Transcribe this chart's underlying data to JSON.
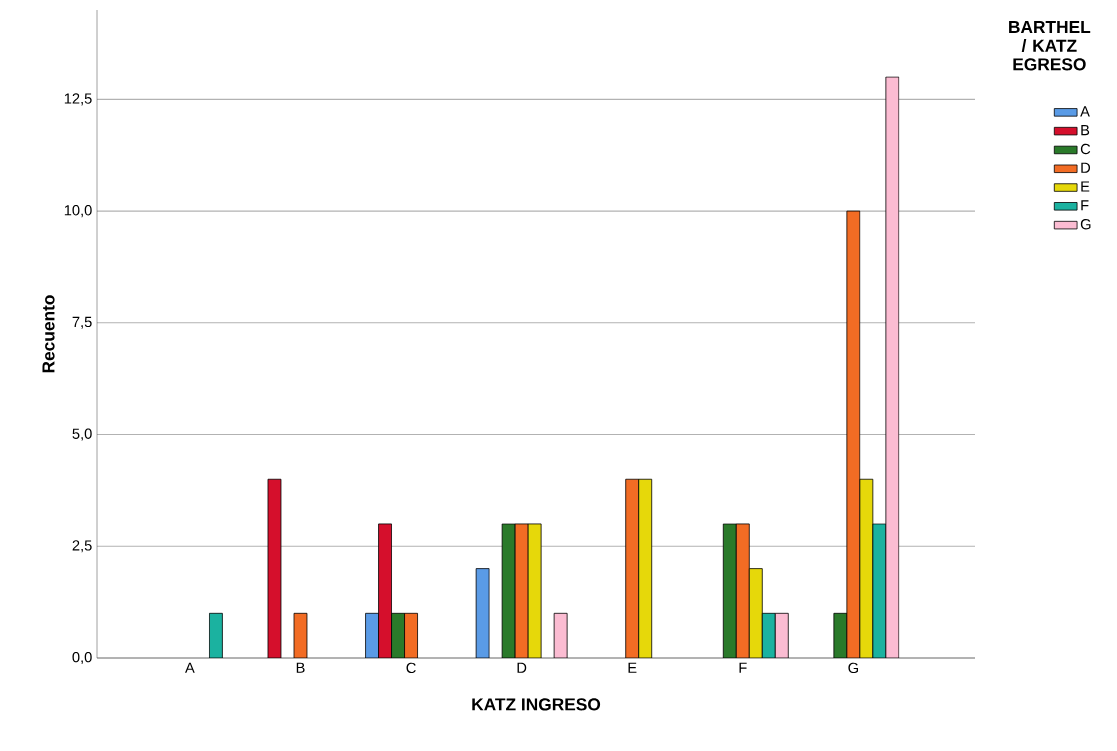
{
  "chart_data": {
    "type": "bar",
    "xlabel": "KATZ INGRESO",
    "ylabel": "Recuento",
    "legend_title": "BARTHEL / KATZ EGRESO",
    "categories": [
      "A",
      "B",
      "C",
      "D",
      "E",
      "F",
      "G"
    ],
    "series": [
      {
        "name": "A",
        "color": "#5a9be6",
        "values": [
          null,
          null,
          1,
          2,
          null,
          null,
          null
        ]
      },
      {
        "name": "B",
        "color": "#d50f2c",
        "values": [
          null,
          4,
          3,
          null,
          null,
          null,
          null
        ]
      },
      {
        "name": "C",
        "color": "#2a7a2a",
        "values": [
          null,
          null,
          1,
          3,
          null,
          3,
          1
        ]
      },
      {
        "name": "D",
        "color": "#f26c24",
        "values": [
          null,
          1,
          1,
          3,
          4,
          3,
          10
        ]
      },
      {
        "name": "E",
        "color": "#e6d80a",
        "values": [
          null,
          null,
          null,
          3,
          4,
          2,
          4
        ]
      },
      {
        "name": "F",
        "color": "#1bb2a0",
        "values": [
          1,
          null,
          null,
          null,
          null,
          1,
          3
        ]
      },
      {
        "name": "G",
        "color": "#fbbcd2",
        "values": [
          null,
          null,
          null,
          1,
          null,
          1,
          13
        ]
      }
    ],
    "ylim": [
      0,
      14.5
    ],
    "yticks": [
      {
        "value": 0,
        "label": "0,0"
      },
      {
        "value": 2.5,
        "label": "2,5"
      },
      {
        "value": 5,
        "label": "5,0"
      },
      {
        "value": 7.5,
        "label": "7,5"
      },
      {
        "value": 10,
        "label": "10,0"
      },
      {
        "value": 12.5,
        "label": "12,5"
      }
    ],
    "grid": "y",
    "legend": "right"
  }
}
